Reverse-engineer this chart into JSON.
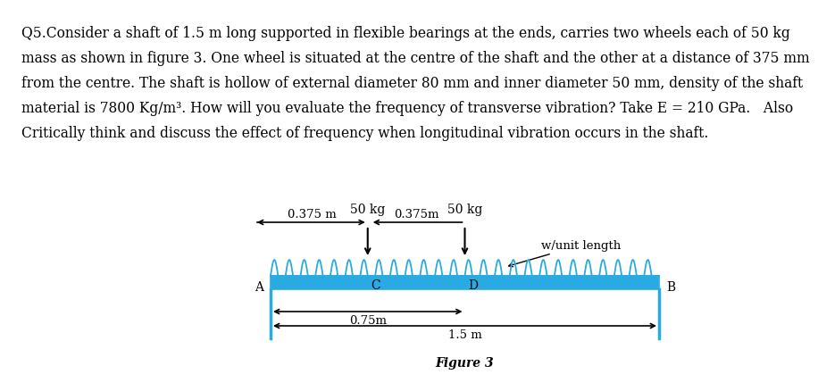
{
  "figure_caption": "Figure 3",
  "shaft_color": "#29abe2",
  "label_50kg_C": "50 kg",
  "label_50kg_D": "50 kg",
  "label_C": "C",
  "label_D": "D",
  "label_A": "A",
  "label_B": "B",
  "dim_0375_label": "0.375 m",
  "dim_0375_label2": "0.375m",
  "dim_075_label": "0.75m",
  "dim_15_label": "1.5 m",
  "w_unit_label": "w/unit length",
  "text_color": "#000000",
  "font_size_body": 11.2,
  "font_size_labels": 10,
  "font_size_dim": 9.5,
  "question_lines": [
    "Q5.Consider a shaft of 1.5 m long supported in flexible bearings at the ends, carries two wheels each of 50 kg",
    "mass as shown in figure 3. One wheel is situated at the centre of the shaft and the other at a distance of 375 mm",
    "from the centre. The shaft is hollow of external diameter 80 mm and inner diameter 50 mm, density of the shaft",
    "material is 7800 Kg/m³. How will you evaluate the frequency of transverse vibration? Take E = 210 GPa.   Also",
    "Critically think and discuss the effect of frequency when longitudinal vibration occurs in the shaft."
  ]
}
